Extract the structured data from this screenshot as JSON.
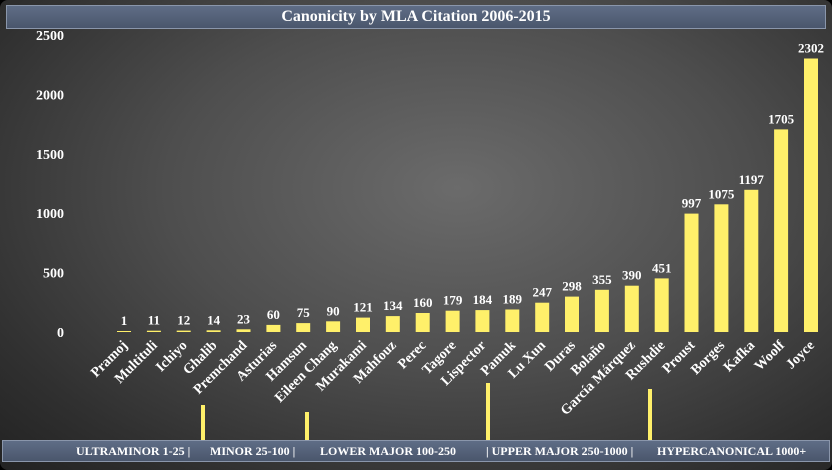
{
  "chart_data": {
    "type": "bar",
    "title": "Canonicity by MLA Citation 2006-2015",
    "xlabel": "",
    "ylabel": "",
    "ylim": [
      0,
      2500
    ],
    "yticks": [
      0,
      500,
      1000,
      1500,
      2000,
      2500
    ],
    "grid": false,
    "bar_color": "#fff06a",
    "label_color": "#ffffff",
    "categories": [
      "Pramoj",
      "Multituli",
      "Ichiyo",
      "Ghalib",
      "Premchand",
      "Asturias",
      "Hamsun",
      "Eileen Chang",
      "Murakami",
      "Mahfouz",
      "Perec",
      "Tagore",
      "Lispector",
      "Pamuk",
      "Lu Xun",
      "Duras",
      "Bolaño",
      "García Márquez",
      "Rushdie",
      "Proust",
      "Borges",
      "Kafka",
      "Woolf",
      "Joyce"
    ],
    "values": [
      1,
      11,
      12,
      14,
      23,
      60,
      75,
      90,
      121,
      134,
      160,
      179,
      184,
      189,
      247,
      298,
      355,
      390,
      451,
      997,
      1075,
      1197,
      1705,
      2302
    ],
    "bands": [
      {
        "label": "ULTRAMINOR 1-25 |"
      },
      {
        "label": "MINOR 25-100 |"
      },
      {
        "label": "LOWER MAJOR 100-250"
      },
      {
        "label": "| UPPER MAJOR 250-1000 |"
      },
      {
        "label": "HYPERCANONICAL 1000+"
      }
    ]
  }
}
